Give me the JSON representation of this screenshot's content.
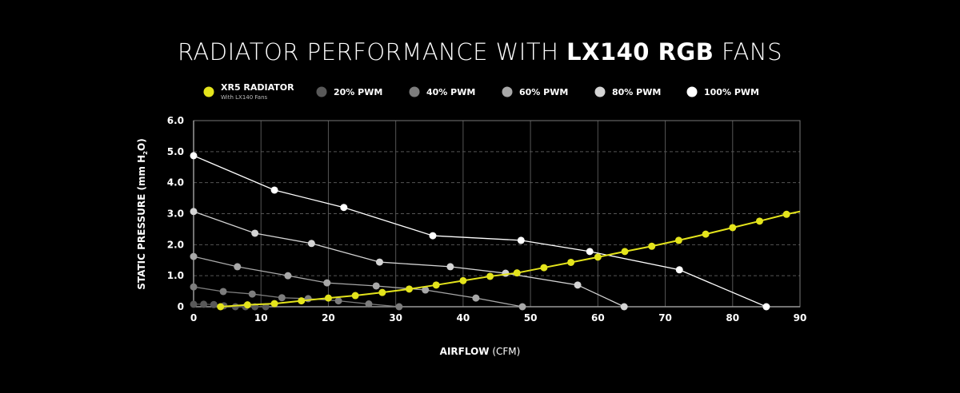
{
  "title": {
    "pre": "RADIATOR PERFORMANCE WITH ",
    "bold": "LX140 RGB",
    "post": " FANS"
  },
  "chart_data": {
    "type": "line",
    "title": "RADIATOR PERFORMANCE WITH LX140 RGB FANS",
    "xlabel": {
      "bold": "AIRFLOW",
      "rest": " (CFM)"
    },
    "ylabel": {
      "main": "STATIC PRESSURE (mm H",
      "sub": "2",
      "end": "O)"
    },
    "xlim": [
      0,
      90
    ],
    "ylim": [
      0,
      6
    ],
    "xticks": [
      "0",
      "10",
      "20",
      "30",
      "40",
      "50",
      "60",
      "70",
      "80",
      "90"
    ],
    "yticks": [
      "0",
      "1.0",
      "2.0",
      "3.0",
      "4.0",
      "5.0",
      "6.0"
    ],
    "grid": {
      "vertical": "solid",
      "horizontal": "dashed"
    },
    "legend_position": "top",
    "series": [
      {
        "name": "XR5 RADIATOR",
        "subtitle": "With LX140 Fans",
        "color": "#e4e41c",
        "points": [
          [
            4,
            0
          ],
          [
            8,
            0.06
          ],
          [
            12,
            0.1
          ],
          [
            16,
            0.19
          ],
          [
            20,
            0.28
          ],
          [
            24,
            0.36
          ],
          [
            28,
            0.46
          ],
          [
            32,
            0.57
          ],
          [
            36,
            0.7
          ],
          [
            40,
            0.84
          ],
          [
            44,
            0.98
          ],
          [
            48,
            1.09
          ],
          [
            52,
            1.26
          ],
          [
            56,
            1.43
          ],
          [
            60,
            1.6
          ],
          [
            64,
            1.78
          ],
          [
            68,
            1.95
          ],
          [
            72,
            2.14
          ],
          [
            76,
            2.34
          ],
          [
            80,
            2.55
          ],
          [
            84,
            2.76
          ],
          [
            88,
            2.98
          ]
        ],
        "line_end": [
          90,
          3.07
        ]
      },
      {
        "name": "20% PWM",
        "color": "#595959",
        "points": [
          [
            0,
            0.08
          ],
          [
            1.5,
            0.08
          ],
          [
            3,
            0.07
          ],
          [
            4.5,
            0.03
          ],
          [
            6.2,
            0
          ],
          [
            7.7,
            0
          ],
          [
            9.1,
            0
          ],
          [
            10.7,
            0
          ]
        ]
      },
      {
        "name": "40% PWM",
        "color": "#7d7d7d",
        "points": [
          [
            0,
            0.64
          ],
          [
            4.4,
            0.49
          ],
          [
            8.7,
            0.41
          ],
          [
            13.1,
            0.29
          ],
          [
            17,
            0.26
          ],
          [
            21.5,
            0.19
          ],
          [
            26,
            0.09
          ],
          [
            30.5,
            0
          ]
        ]
      },
      {
        "name": "60% PWM",
        "color": "#a8a8a8",
        "points": [
          [
            0,
            1.62
          ],
          [
            6.5,
            1.29
          ],
          [
            14,
            1.0
          ],
          [
            19.8,
            0.77
          ],
          [
            27.1,
            0.67
          ],
          [
            34.4,
            0.54
          ],
          [
            41.9,
            0.28
          ],
          [
            48.8,
            0
          ]
        ]
      },
      {
        "name": "80% PWM",
        "color": "#d4d4d4",
        "points": [
          [
            0,
            3.07
          ],
          [
            9.1,
            2.37
          ],
          [
            17.5,
            2.04
          ],
          [
            27.6,
            1.44
          ],
          [
            38.1,
            1.29
          ],
          [
            46.3,
            1.08
          ],
          [
            57,
            0.7
          ],
          [
            63.9,
            0
          ]
        ]
      },
      {
        "name": "100% PWM",
        "color": "#ffffff",
        "points": [
          [
            0,
            4.87
          ],
          [
            12,
            3.76
          ],
          [
            22.3,
            3.2
          ],
          [
            35.5,
            2.29
          ],
          [
            48.6,
            2.14
          ],
          [
            58.8,
            1.78
          ],
          [
            72.1,
            1.19
          ],
          [
            85,
            0
          ]
        ]
      }
    ]
  }
}
